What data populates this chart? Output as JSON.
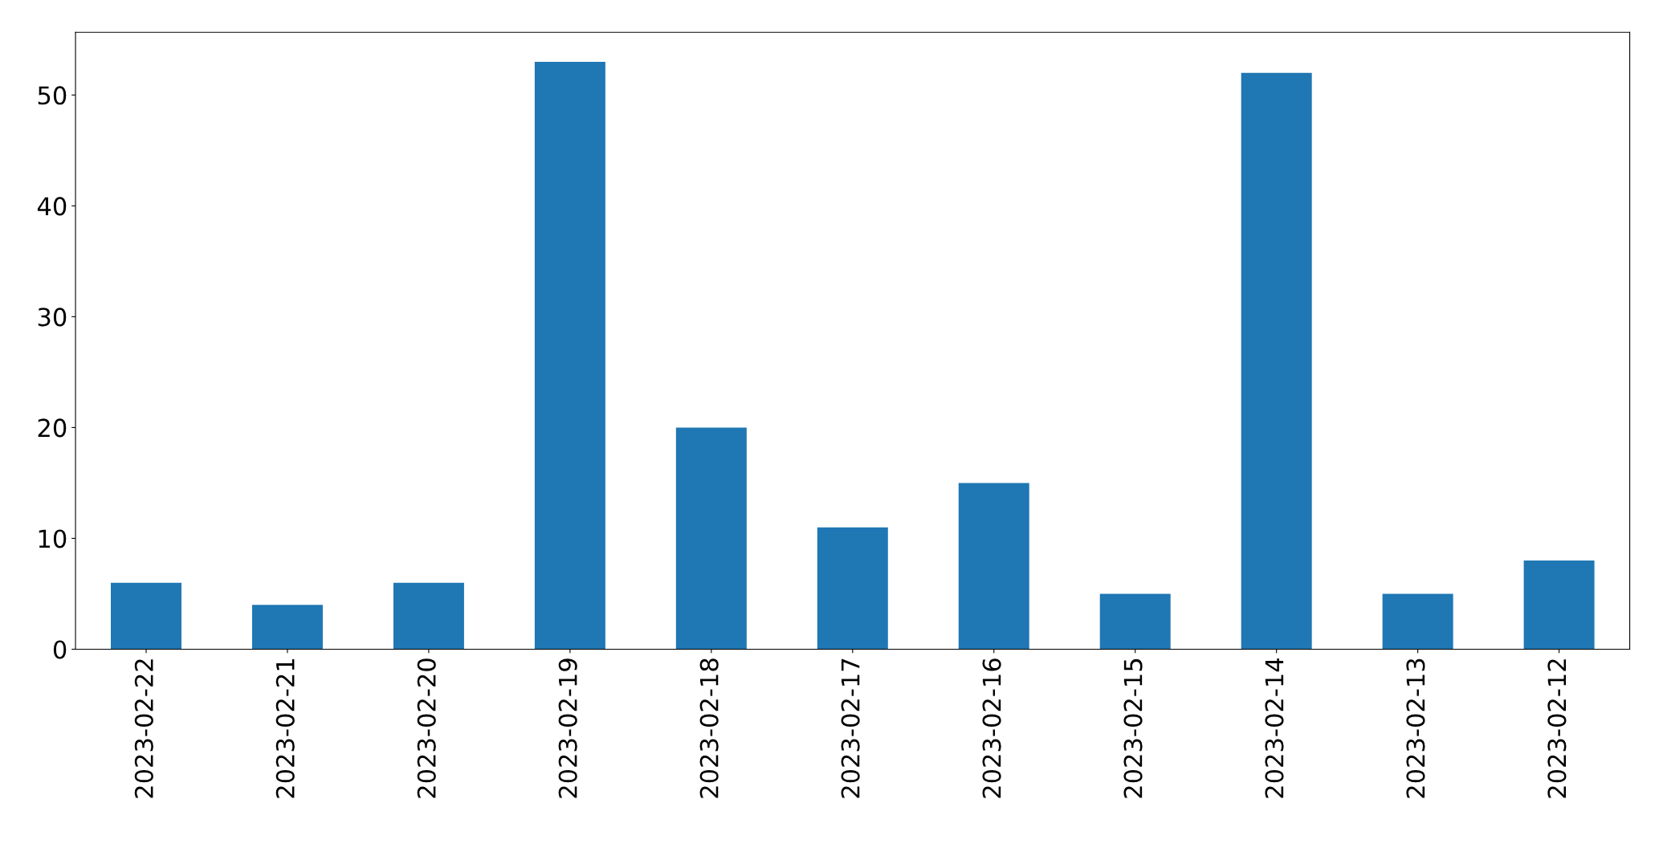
{
  "chart_data": {
    "type": "bar",
    "categories": [
      "2023-02-22",
      "2023-02-21",
      "2023-02-20",
      "2023-02-19",
      "2023-02-18",
      "2023-02-17",
      "2023-02-16",
      "2023-02-15",
      "2023-02-14",
      "2023-02-13",
      "2023-02-12"
    ],
    "values": [
      6,
      4,
      6,
      53,
      20,
      11,
      15,
      5,
      52,
      5,
      8
    ],
    "color": "#1f77b4",
    "ylim": [
      0,
      55.65
    ],
    "yticks": [
      0,
      10,
      20,
      30,
      40,
      50
    ],
    "grid": false
  }
}
